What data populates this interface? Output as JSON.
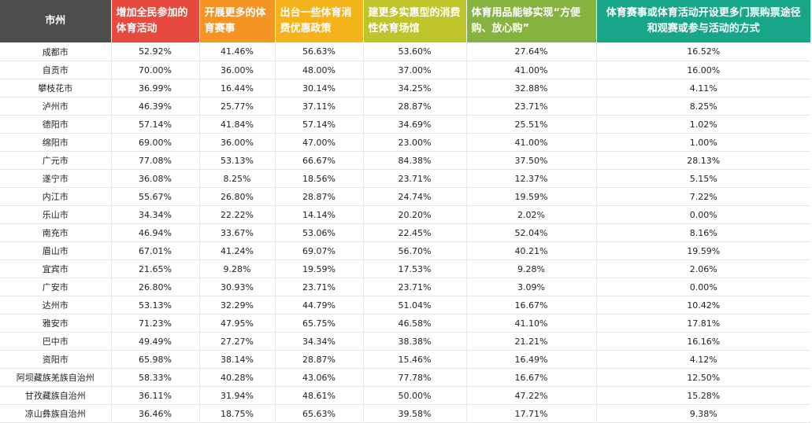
{
  "columns": [
    {
      "label": "市州",
      "color": "#4d4d4d"
    },
    {
      "label": "增加全民参加的体育活动",
      "color": "#e8493e"
    },
    {
      "label": "开展更多的体育赛事",
      "color": "#f59323"
    },
    {
      "label": "出台一些体育消费优惠政策",
      "color": "#f5b31b"
    },
    {
      "label": "建更多实惠型的消费性体育场馆",
      "color": "#bfc42b"
    },
    {
      "label": "体育用品能够实现“方便购、放心购”",
      "color": "#86b33f"
    },
    {
      "label": "体育赛事或体育活动开设更多门票购票途径和观赛或参与活动的方式",
      "color": "#17a689"
    }
  ],
  "rows": [
    {
      "city": "成都市",
      "values": [
        "52.92%",
        "41.46%",
        "56.63%",
        "53.60%",
        "27.64%",
        "16.52%"
      ]
    },
    {
      "city": "自贡市",
      "values": [
        "70.00%",
        "36.00%",
        "48.00%",
        "37.00%",
        "41.00%",
        "16.00%"
      ]
    },
    {
      "city": "攀枝花市",
      "values": [
        "36.99%",
        "16.44%",
        "30.14%",
        "34.25%",
        "32.88%",
        "4.11%"
      ]
    },
    {
      "city": "泸州市",
      "values": [
        "46.39%",
        "25.77%",
        "37.11%",
        "28.87%",
        "23.71%",
        "8.25%"
      ]
    },
    {
      "city": "德阳市",
      "values": [
        "57.14%",
        "41.84%",
        "57.14%",
        "34.69%",
        "25.51%",
        "1.02%"
      ]
    },
    {
      "city": "绵阳市",
      "values": [
        "69.00%",
        "36.00%",
        "47.00%",
        "23.00%",
        "41.00%",
        "1.00%"
      ]
    },
    {
      "city": "广元市",
      "values": [
        "77.08%",
        "53.13%",
        "66.67%",
        "84.38%",
        "37.50%",
        "28.13%"
      ]
    },
    {
      "city": "遂宁市",
      "values": [
        "36.08%",
        "8.25%",
        "18.56%",
        "23.71%",
        "12.37%",
        "5.15%"
      ]
    },
    {
      "city": "内江市",
      "values": [
        "55.67%",
        "26.80%",
        "28.87%",
        "24.74%",
        "19.59%",
        "7.22%"
      ]
    },
    {
      "city": "乐山市",
      "values": [
        "34.34%",
        "22.22%",
        "14.14%",
        "20.20%",
        "2.02%",
        "0.00%"
      ]
    },
    {
      "city": "南充市",
      "values": [
        "46.94%",
        "33.67%",
        "53.06%",
        "22.45%",
        "52.04%",
        "8.16%"
      ]
    },
    {
      "city": "眉山市",
      "values": [
        "67.01%",
        "41.24%",
        "69.07%",
        "56.70%",
        "40.21%",
        "19.59%"
      ]
    },
    {
      "city": "宜宾市",
      "values": [
        "21.65%",
        "9.28%",
        "19.59%",
        "17.53%",
        "9.28%",
        "2.06%"
      ]
    },
    {
      "city": "广安市",
      "values": [
        "26.80%",
        "30.93%",
        "23.71%",
        "23.71%",
        "3.09%",
        "0.00%"
      ]
    },
    {
      "city": "达州市",
      "values": [
        "53.13%",
        "32.29%",
        "44.79%",
        "51.04%",
        "16.67%",
        "10.42%"
      ]
    },
    {
      "city": "雅安市",
      "values": [
        "71.23%",
        "47.95%",
        "65.75%",
        "46.58%",
        "41.10%",
        "17.81%"
      ]
    },
    {
      "city": "巴中市",
      "values": [
        "49.49%",
        "27.27%",
        "34.34%",
        "38.38%",
        "21.21%",
        "16.16%"
      ]
    },
    {
      "city": "资阳市",
      "values": [
        "65.98%",
        "38.14%",
        "28.87%",
        "15.46%",
        "16.49%",
        "4.12%"
      ]
    },
    {
      "city": "阿坝藏族羌族自治州",
      "values": [
        "58.33%",
        "40.28%",
        "43.06%",
        "77.78%",
        "16.67%",
        "12.50%"
      ]
    },
    {
      "city": "甘孜藏族自治州",
      "values": [
        "36.11%",
        "31.94%",
        "48.61%",
        "50.00%",
        "47.22%",
        "15.28%"
      ]
    },
    {
      "city": "凉山彝族自治州",
      "values": [
        "36.46%",
        "18.75%",
        "65.63%",
        "39.58%",
        "17.71%",
        "9.38%"
      ]
    }
  ]
}
